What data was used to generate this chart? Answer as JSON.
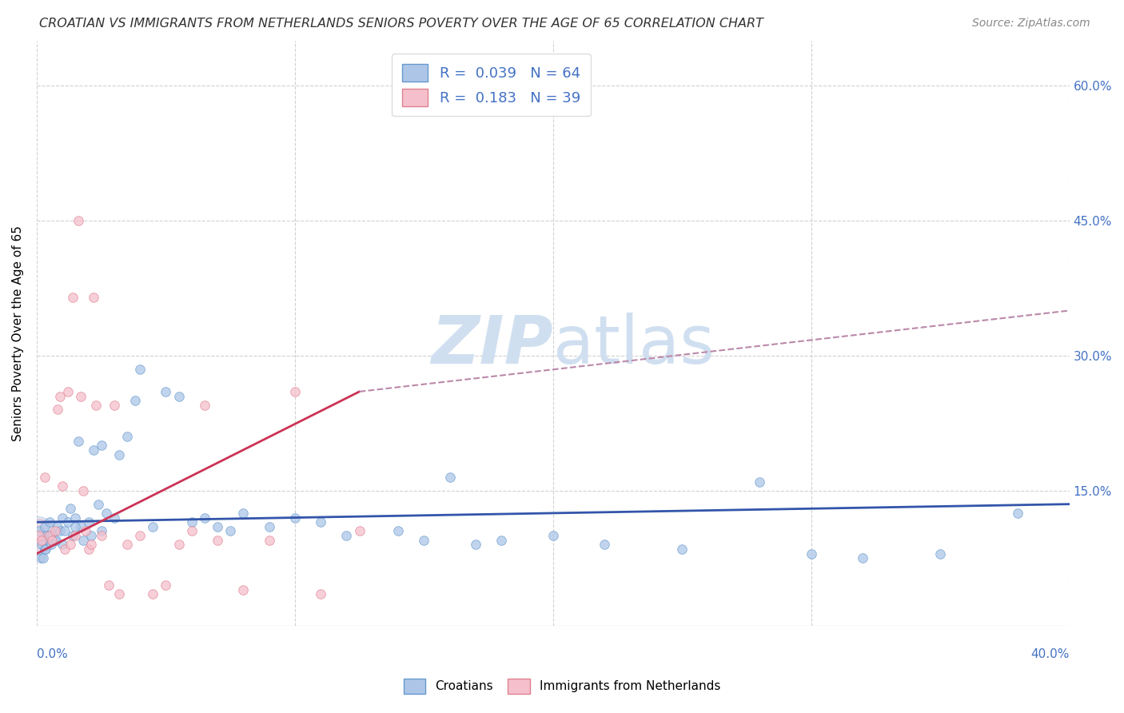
{
  "title": "CROATIAN VS IMMIGRANTS FROM NETHERLANDS SENIORS POVERTY OVER THE AGE OF 65 CORRELATION CHART",
  "source": "Source: ZipAtlas.com",
  "ylabel": "Seniors Poverty Over the Age of 65",
  "R1": 0.039,
  "N1": 64,
  "R2": 0.183,
  "N2": 39,
  "color_blue_fill": "#adc6e8",
  "color_blue_edge": "#6699cc",
  "color_pink_fill": "#f5c0cc",
  "color_pink_edge": "#e08090",
  "color_text_blue": "#4472c4",
  "color_trendline_blue": "#3355aa",
  "color_trendline_pink": "#cc3355",
  "color_trendline_pink_dashed": "#bb88aa",
  "background_color": "#ffffff",
  "grid_color": "#cccccc",
  "watermark_color": "#d0dff0",
  "legend1_label": "Croatians",
  "legend2_label": "Immigrants from Netherlands",
  "xmin": 0.0,
  "xmax": 40.0,
  "ymin": 0.0,
  "ymax": 65.0,
  "ytick_vals": [
    15,
    30,
    45,
    60
  ],
  "ytick_labels": [
    "15.0%",
    "30.0%",
    "45.0%",
    "60.0%"
  ],
  "croatians_x": [
    0.1,
    0.2,
    0.3,
    0.3,
    0.4,
    0.5,
    0.5,
    0.6,
    0.7,
    0.8,
    0.9,
    1.0,
    1.0,
    1.1,
    1.2,
    1.3,
    1.4,
    1.5,
    1.6,
    1.7,
    1.8,
    2.0,
    2.1,
    2.2,
    2.4,
    2.5,
    2.7,
    3.0,
    3.2,
    3.5,
    3.8,
    4.0,
    4.5,
    5.0,
    5.5,
    6.0,
    6.5,
    7.0,
    7.5,
    8.0,
    9.0,
    10.0,
    11.0,
    12.0,
    14.0,
    15.0,
    16.0,
    17.0,
    18.0,
    20.0,
    22.0,
    25.0,
    28.0,
    30.0,
    32.0,
    35.0,
    38.0,
    0.15,
    0.25,
    0.35,
    0.55,
    0.75,
    1.5,
    2.5
  ],
  "croatians_y": [
    10.5,
    9.0,
    11.0,
    8.5,
    10.0,
    9.5,
    11.5,
    10.0,
    9.5,
    11.0,
    10.5,
    12.0,
    9.0,
    10.5,
    11.5,
    13.0,
    10.0,
    12.0,
    20.5,
    11.0,
    9.5,
    11.5,
    10.0,
    19.5,
    13.5,
    20.0,
    12.5,
    12.0,
    19.0,
    21.0,
    25.0,
    28.5,
    11.0,
    26.0,
    25.5,
    11.5,
    12.0,
    11.0,
    10.5,
    12.5,
    11.0,
    12.0,
    11.5,
    10.0,
    10.5,
    9.5,
    16.5,
    9.0,
    9.5,
    10.0,
    9.0,
    8.5,
    16.0,
    8.0,
    7.5,
    8.0,
    12.5,
    7.5,
    7.5,
    8.5,
    9.0,
    9.5,
    11.0,
    10.5
  ],
  "netherlands_x": [
    0.1,
    0.2,
    0.3,
    0.5,
    0.6,
    0.7,
    0.8,
    0.9,
    1.0,
    1.1,
    1.2,
    1.3,
    1.4,
    1.5,
    1.6,
    1.7,
    1.8,
    1.9,
    2.0,
    2.1,
    2.2,
    2.3,
    2.5,
    2.8,
    3.0,
    3.2,
    3.5,
    4.0,
    4.5,
    5.0,
    5.5,
    6.0,
    6.5,
    7.0,
    8.0,
    9.0,
    10.0,
    11.0,
    12.5
  ],
  "netherlands_y": [
    10.0,
    9.5,
    16.5,
    10.0,
    9.5,
    10.5,
    24.0,
    25.5,
    15.5,
    8.5,
    26.0,
    9.0,
    36.5,
    10.0,
    45.0,
    25.5,
    15.0,
    10.5,
    8.5,
    9.0,
    36.5,
    24.5,
    10.0,
    4.5,
    24.5,
    3.5,
    9.0,
    10.0,
    3.5,
    4.5,
    9.0,
    10.5,
    24.5,
    9.5,
    4.0,
    9.5,
    26.0,
    3.5,
    10.5
  ],
  "cr_trendline_x0": 0.0,
  "cr_trendline_x1": 40.0,
  "cr_trendline_y0": 11.5,
  "cr_trendline_y1": 13.5,
  "nl_trendline_x0": 0.0,
  "nl_trendline_x1": 12.5,
  "nl_trendline_y0": 8.0,
  "nl_trendline_y1": 26.0,
  "nl_dashed_x0": 12.5,
  "nl_dashed_x1": 40.0,
  "nl_dashed_y0": 26.0,
  "nl_dashed_y1": 35.0
}
